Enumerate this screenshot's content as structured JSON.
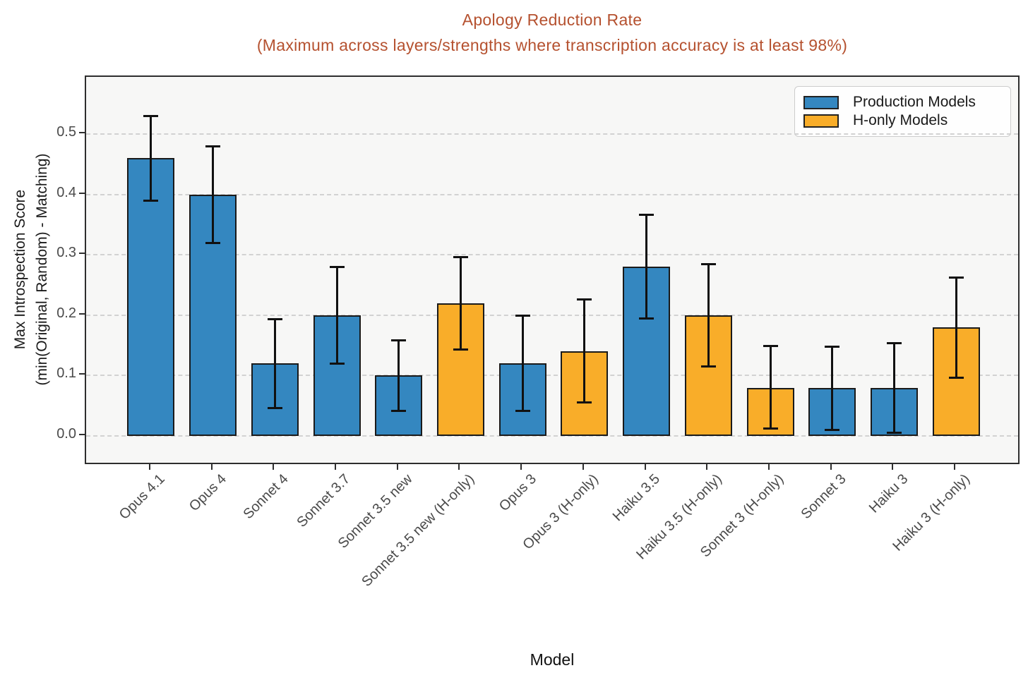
{
  "chart_data": {
    "type": "bar",
    "title": "Apology Reduction Rate",
    "subtitle": "(Maximum across layers/strengths where transcription accuracy is at least 98%)",
    "xlabel": "Model",
    "ylabel_lines": [
      "Max Introspection Score",
      "(min(Original, Random) - Matching)"
    ],
    "ylim": [
      -0.05,
      0.6
    ],
    "yticks": [
      0.0,
      0.1,
      0.2,
      0.3,
      0.4,
      0.5
    ],
    "grid": "horizontal-dashed",
    "legend_position": "upper-right",
    "legend": [
      {
        "key": "production",
        "label": "Production Models",
        "color": "#3487c0"
      },
      {
        "key": "h_only",
        "label": "H-only Models",
        "color": "#f9ad29"
      }
    ],
    "bars": [
      {
        "label": "Opus 4.1",
        "group": "production",
        "value": 0.46,
        "err_lo": 0.39,
        "err_hi": 0.53
      },
      {
        "label": "Opus 4",
        "group": "production",
        "value": 0.4,
        "err_lo": 0.32,
        "err_hi": 0.48
      },
      {
        "label": "Sonnet 4",
        "group": "production",
        "value": 0.12,
        "err_lo": 0.046,
        "err_hi": 0.193
      },
      {
        "label": "Sonnet 3.7",
        "group": "production",
        "value": 0.2,
        "err_lo": 0.12,
        "err_hi": 0.28
      },
      {
        "label": "Sonnet 3.5 new",
        "group": "production",
        "value": 0.1,
        "err_lo": 0.041,
        "err_hi": 0.158
      },
      {
        "label": "Sonnet 3.5 new (H-only)",
        "group": "h_only",
        "value": 0.22,
        "err_lo": 0.143,
        "err_hi": 0.296
      },
      {
        "label": "Opus 3",
        "group": "production",
        "value": 0.12,
        "err_lo": 0.041,
        "err_hi": 0.199
      },
      {
        "label": "Opus 3 (H-only)",
        "group": "h_only",
        "value": 0.14,
        "err_lo": 0.056,
        "err_hi": 0.226
      },
      {
        "label": "Haiku 3.5",
        "group": "production",
        "value": 0.28,
        "err_lo": 0.195,
        "err_hi": 0.366
      },
      {
        "label": "Haiku 3.5 (H-only)",
        "group": "h_only",
        "value": 0.2,
        "err_lo": 0.115,
        "err_hi": 0.285
      },
      {
        "label": "Sonnet 3 (H-only)",
        "group": "h_only",
        "value": 0.08,
        "err_lo": 0.012,
        "err_hi": 0.149
      },
      {
        "label": "Sonnet 3",
        "group": "production",
        "value": 0.08,
        "err_lo": 0.01,
        "err_hi": 0.148
      },
      {
        "label": "Haiku 3",
        "group": "production",
        "value": 0.08,
        "err_lo": 0.005,
        "err_hi": 0.154
      },
      {
        "label": "Haiku 3 (H-only)",
        "group": "h_only",
        "value": 0.18,
        "err_lo": 0.096,
        "err_hi": 0.262
      }
    ],
    "colors": {
      "production": "#3487c0",
      "h_only": "#f9ad29",
      "bar_edge": "#1a1a1a",
      "error_bar": "#111111",
      "title": "#b5512f",
      "plot_background": "#f7f7f6",
      "figure_background": "#ffffff",
      "gridline": "#d2d2d2",
      "spine": "#2e2e2e",
      "tick_label": "#4a4a4a"
    }
  }
}
